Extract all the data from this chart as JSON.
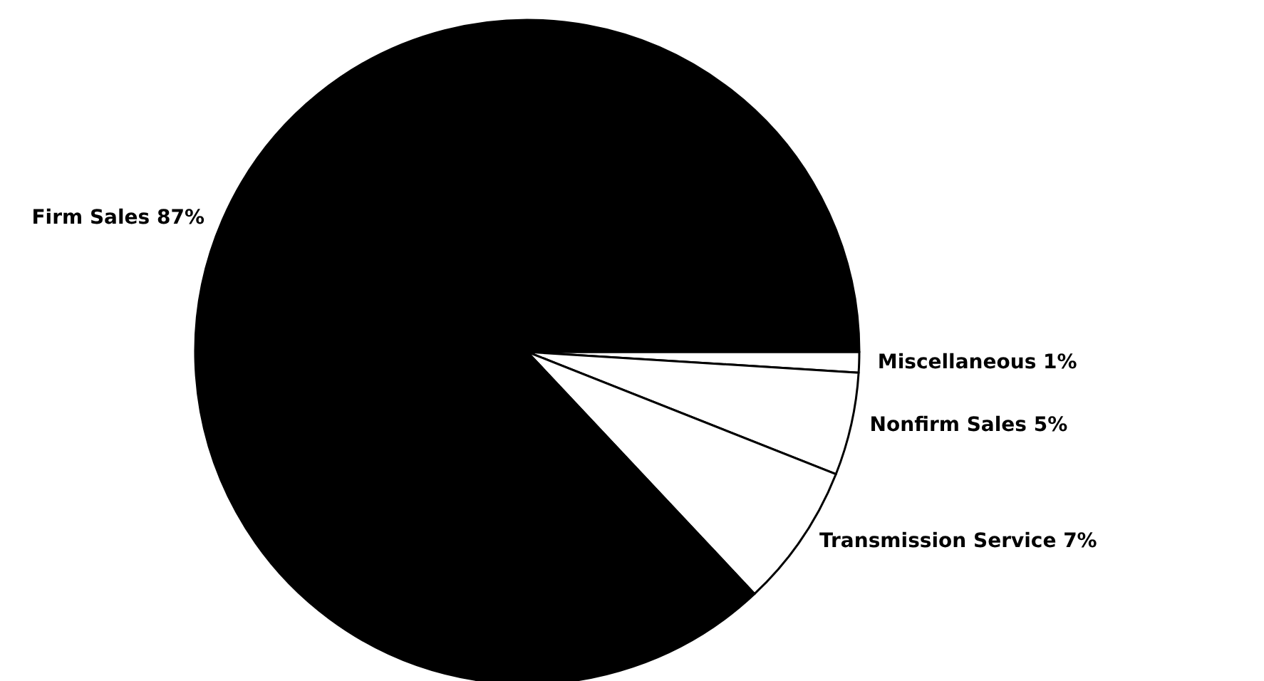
{
  "chart_data": {
    "type": "pie",
    "categories": [
      "Miscellaneous",
      "Nonfirm Sales",
      "Transmission Service",
      "Firm Sales"
    ],
    "values": [
      1,
      5,
      7,
      87
    ],
    "value_labels": [
      "1%",
      "5%",
      "7%",
      "87%"
    ],
    "colors": [
      "#ffffff",
      "#ffffff",
      "#ffffff",
      "#000000"
    ]
  }
}
